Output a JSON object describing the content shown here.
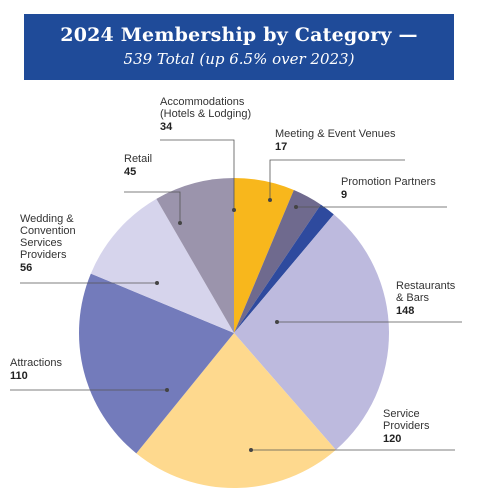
{
  "header": {
    "title": "2024 Membership by Category —",
    "subtitle": "539 Total (up 6.5% over 2023)"
  },
  "colors": {
    "banner": "#1f4b99"
  },
  "chart_data": {
    "type": "pie",
    "title": "2024 Membership by Category —",
    "subtitle": "539 Total (up 6.5% over 2023)",
    "legend": "none",
    "slices": [
      {
        "label": [
          "Accommodations",
          "(Hotels & Lodging)"
        ],
        "value": 34,
        "color": "#f8b71c"
      },
      {
        "label": [
          "Meeting & Event Venues"
        ],
        "value": 17,
        "color": "#6f6a8e"
      },
      {
        "label": [
          "Promotion Partners"
        ],
        "value": 9,
        "color": "#2e4a9e"
      },
      {
        "label": [
          "Restaurants",
          "& Bars"
        ],
        "value": 148,
        "color": "#bdbade"
      },
      {
        "label": [
          "Service",
          "Providers"
        ],
        "value": 120,
        "color": "#fed98e"
      },
      {
        "label": [
          "Attractions"
        ],
        "value": 110,
        "color": "#737bbb"
      },
      {
        "label": [
          "Wedding &",
          "Convention",
          "Services",
          "Providers"
        ],
        "value": 56,
        "color": "#d6d4ec"
      },
      {
        "label": [
          "Retail"
        ],
        "value": 45,
        "color": "#9b94ac"
      }
    ]
  }
}
